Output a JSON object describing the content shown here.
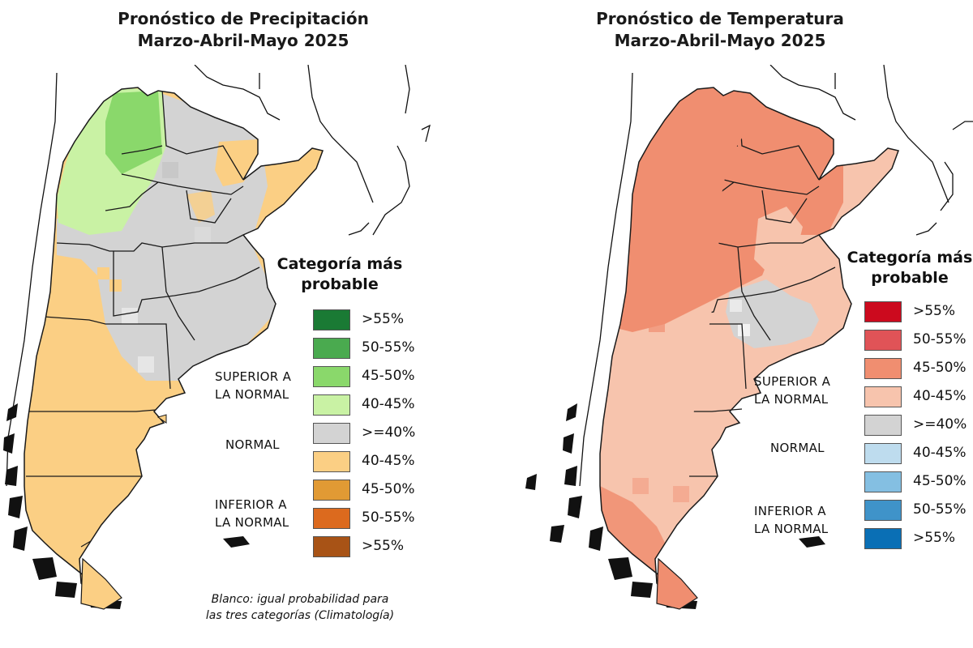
{
  "precipitation": {
    "title_line1": "Pronóstico de Precipitación",
    "title_line2": "Marzo-Abril-Mayo 2025",
    "legend_title_line1": "Categoría más",
    "legend_title_line2": "probable",
    "categories": {
      "superior_line1": "SUPERIOR A",
      "superior_line2": "LA NORMAL",
      "normal": "NORMAL",
      "inferior_line1": "INFERIOR A",
      "inferior_line2": "LA NORMAL"
    },
    "legend": [
      {
        "label": ">55%",
        "color": "#1a7a34"
      },
      {
        "label": "50-55%",
        "color": "#4aaa4f"
      },
      {
        "label": "45-50%",
        "color": "#8ad86b"
      },
      {
        "label": "40-45%",
        "color": "#c9f2a4"
      },
      {
        "label": ">=40%",
        "color": "#d3d3d3"
      },
      {
        "label": "40-45%",
        "color": "#fbcf84"
      },
      {
        "label": "45-50%",
        "color": "#e19a34"
      },
      {
        "label": "50-55%",
        "color": "#dc6a1e"
      },
      {
        "label": ">55%",
        "color": "#a85316"
      }
    ],
    "note_line1": "Blanco: igual probabilidad para",
    "note_line2": "las tres categorías (Climatología)"
  },
  "temperature": {
    "title_line1": "Pronóstico de Temperatura",
    "title_line2": "Marzo-Abril-Mayo 2025",
    "legend_title_line1": "Categoría más",
    "legend_title_line2": "probable",
    "categories": {
      "superior_line1": "SUPERIOR A",
      "superior_line2": "LA NORMAL",
      "normal": "NORMAL",
      "inferior_line1": "INFERIOR A",
      "inferior_line2": "LA NORMAL"
    },
    "legend": [
      {
        "label": ">55%",
        "color": "#cc0a1e"
      },
      {
        "label": "50-55%",
        "color": "#e05357"
      },
      {
        "label": "45-50%",
        "color": "#f08e70"
      },
      {
        "label": "40-45%",
        "color": "#f7c4ad"
      },
      {
        "label": ">=40%",
        "color": "#d3d3d3"
      },
      {
        "label": "40-45%",
        "color": "#bedcee"
      },
      {
        "label": "45-50%",
        "color": "#84bfe2"
      },
      {
        "label": "50-55%",
        "color": "#3f93c9"
      },
      {
        "label": ">55%",
        "color": "#0a6fb5"
      }
    ]
  }
}
